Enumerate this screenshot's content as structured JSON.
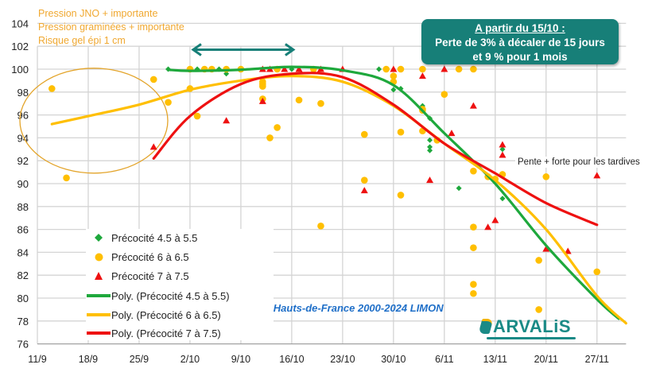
{
  "chart_data": {
    "type": "scatter",
    "title": "",
    "xlabel": "",
    "ylabel": "",
    "ylim": [
      76,
      104
    ],
    "yticks": [
      "76",
      "78",
      "80",
      "82",
      "84",
      "86",
      "88",
      "90",
      "92",
      "94",
      "96",
      "98",
      "100",
      "102",
      "104"
    ],
    "xlim": [
      "11/9",
      "1/12"
    ],
    "xticks": [
      "11/9",
      "18/9",
      "25/9",
      "2/10",
      "9/10",
      "16/10",
      "23/10",
      "30/10",
      "6/11",
      "13/11",
      "20/11",
      "27/11"
    ],
    "grid": true,
    "legend_position": "bottom-left",
    "colors": {
      "green": "#1ea83c",
      "yellow": "#ffbf00",
      "red": "#ee1111",
      "teal": "#177f78"
    },
    "series": [
      {
        "name": "Précocité 4.5 à 5.5",
        "marker": "diamond",
        "color": "#1ea83c",
        "points": [
          [
            "29/9",
            100
          ],
          [
            "3/10",
            100
          ],
          [
            "6/10",
            100
          ],
          [
            "7/10",
            99.6
          ],
          [
            "16/10",
            100
          ],
          [
            "28/10",
            100
          ],
          [
            "30/10",
            98.2
          ],
          [
            "31/10",
            98.3
          ],
          [
            "3/11",
            96.8
          ],
          [
            "4/11",
            95.7
          ],
          [
            "4/11",
            93.8
          ],
          [
            "4/11",
            93.2
          ],
          [
            "4/11",
            92.9
          ],
          [
            "8/11",
            89.6
          ],
          [
            "14/11",
            93.0
          ],
          [
            "14/11",
            88.7
          ]
        ]
      },
      {
        "name": "Précocité 6 à 6.5",
        "marker": "circle",
        "color": "#ffbf00",
        "points": [
          [
            "13/9",
            98.3
          ],
          [
            "15/9",
            90.5
          ],
          [
            "27/9",
            99.1
          ],
          [
            "29/9",
            97.1
          ],
          [
            "2/10",
            100
          ],
          [
            "2/10",
            98.3
          ],
          [
            "3/10",
            95.9
          ],
          [
            "4/10",
            100
          ],
          [
            "5/10",
            100
          ],
          [
            "7/10",
            100
          ],
          [
            "9/10",
            100
          ],
          [
            "12/10",
            98.9
          ],
          [
            "12/10",
            98.7
          ],
          [
            "12/10",
            98.5
          ],
          [
            "12/10",
            97.4
          ],
          [
            "13/10",
            94.0
          ],
          [
            "14/10",
            100
          ],
          [
            "14/10",
            94.9
          ],
          [
            "17/10",
            97.3
          ],
          [
            "19/10",
            100
          ],
          [
            "20/10",
            97.0
          ],
          [
            "20/10",
            86.3
          ],
          [
            "26/10",
            94.3
          ],
          [
            "26/10",
            90.3
          ],
          [
            "29/10",
            100
          ],
          [
            "30/10",
            99.4
          ],
          [
            "30/10",
            98.9
          ],
          [
            "31/10",
            100
          ],
          [
            "31/10",
            94.5
          ],
          [
            "31/10",
            89.0
          ],
          [
            "3/11",
            100
          ],
          [
            "3/11",
            96.5
          ],
          [
            "3/11",
            96.4
          ],
          [
            "3/11",
            94.6
          ],
          [
            "5/11",
            93.8
          ],
          [
            "6/11",
            97.8
          ],
          [
            "8/11",
            100
          ],
          [
            "10/11",
            100
          ],
          [
            "10/11",
            91.1
          ],
          [
            "10/11",
            86.2
          ],
          [
            "10/11",
            84.4
          ],
          [
            "10/11",
            81.2
          ],
          [
            "10/11",
            80.4
          ],
          [
            "12/11",
            90.6
          ],
          [
            "13/11",
            90.4
          ],
          [
            "14/11",
            90.8
          ],
          [
            "19/11",
            83.3
          ],
          [
            "19/11",
            79.0
          ],
          [
            "20/11",
            90.6
          ],
          [
            "27/11",
            82.3
          ]
        ]
      },
      {
        "name": "Précocité 7 à 7.5",
        "marker": "triangle",
        "color": "#ee1111",
        "points": [
          [
            "27/9",
            93.2
          ],
          [
            "7/10",
            95.5
          ],
          [
            "12/10",
            100
          ],
          [
            "12/10",
            97.2
          ],
          [
            "13/10",
            100
          ],
          [
            "15/10",
            100
          ],
          [
            "17/10",
            100
          ],
          [
            "20/10",
            100
          ],
          [
            "23/10",
            100
          ],
          [
            "26/10",
            89.4
          ],
          [
            "30/10",
            100
          ],
          [
            "3/11",
            99.4
          ],
          [
            "4/11",
            90.3
          ],
          [
            "6/11",
            100
          ],
          [
            "7/11",
            94.4
          ],
          [
            "10/11",
            96.8
          ],
          [
            "12/11",
            86.2
          ],
          [
            "13/11",
            86.8
          ],
          [
            "14/11",
            93.4
          ],
          [
            "14/11",
            92.5
          ],
          [
            "20/11",
            84.3
          ],
          [
            "23/11",
            84.1
          ],
          [
            "27/11",
            90.7
          ]
        ]
      }
    ],
    "trendlines": [
      {
        "name": "Poly. (Précocité 4.5 à 5.5)",
        "color": "#1ea83c",
        "points": [
          [
            "29/9",
            99.95
          ],
          [
            "2/10",
            99.85
          ],
          [
            "9/10",
            99.95
          ],
          [
            "16/10",
            100.2
          ],
          [
            "23/10",
            99.9
          ],
          [
            "30/10",
            98.6
          ],
          [
            "6/11",
            94.4
          ],
          [
            "13/11",
            90.0
          ],
          [
            "20/11",
            84.6
          ],
          [
            "27/11",
            79.9
          ],
          [
            "30/11",
            78.2
          ]
        ]
      },
      {
        "name": "Poly. (Précocité 6 à 6.5)",
        "color": "#ffbf00",
        "points": [
          [
            "13/9",
            95.2
          ],
          [
            "18/9",
            95.9
          ],
          [
            "25/9",
            96.9
          ],
          [
            "2/10",
            98.2
          ],
          [
            "9/10",
            99.0
          ],
          [
            "16/10",
            99.4
          ],
          [
            "23/10",
            98.9
          ],
          [
            "30/10",
            96.8
          ],
          [
            "6/11",
            93.5
          ],
          [
            "13/11",
            90.3
          ],
          [
            "20/11",
            86.0
          ],
          [
            "27/11",
            80.2
          ],
          [
            "1/12",
            77.8
          ]
        ]
      },
      {
        "name": "Poly. (Précocité 7 à 7.5)",
        "color": "#ee1111",
        "points": [
          [
            "27/9",
            92.2
          ],
          [
            "2/10",
            95.9
          ],
          [
            "9/10",
            98.7
          ],
          [
            "16/10",
            99.6
          ],
          [
            "23/10",
            99.3
          ],
          [
            "30/10",
            96.9
          ],
          [
            "6/11",
            93.5
          ],
          [
            "13/11",
            90.9
          ],
          [
            "20/11",
            88.3
          ],
          [
            "27/11",
            86.4
          ]
        ]
      }
    ],
    "annotations": {
      "notes": [
        "Pression JNO + importante",
        "Pression graminées + importante",
        "Risque gel épi 1 cm"
      ],
      "callout_title": "A partir  du 15/10 :",
      "callout_line1": "Perte de 3% à décaler de 15 jours",
      "callout_line2": "et 9 % pour 1 mois",
      "arrow_range": [
        "2/10",
        "16/10"
      ],
      "arrow_level": 101.7,
      "slope_note": "Pente + forte pour les tardives",
      "source": "BDD Hauts-de-France  2000-2024 LIMON"
    },
    "logo_text": "ARVALiS"
  }
}
